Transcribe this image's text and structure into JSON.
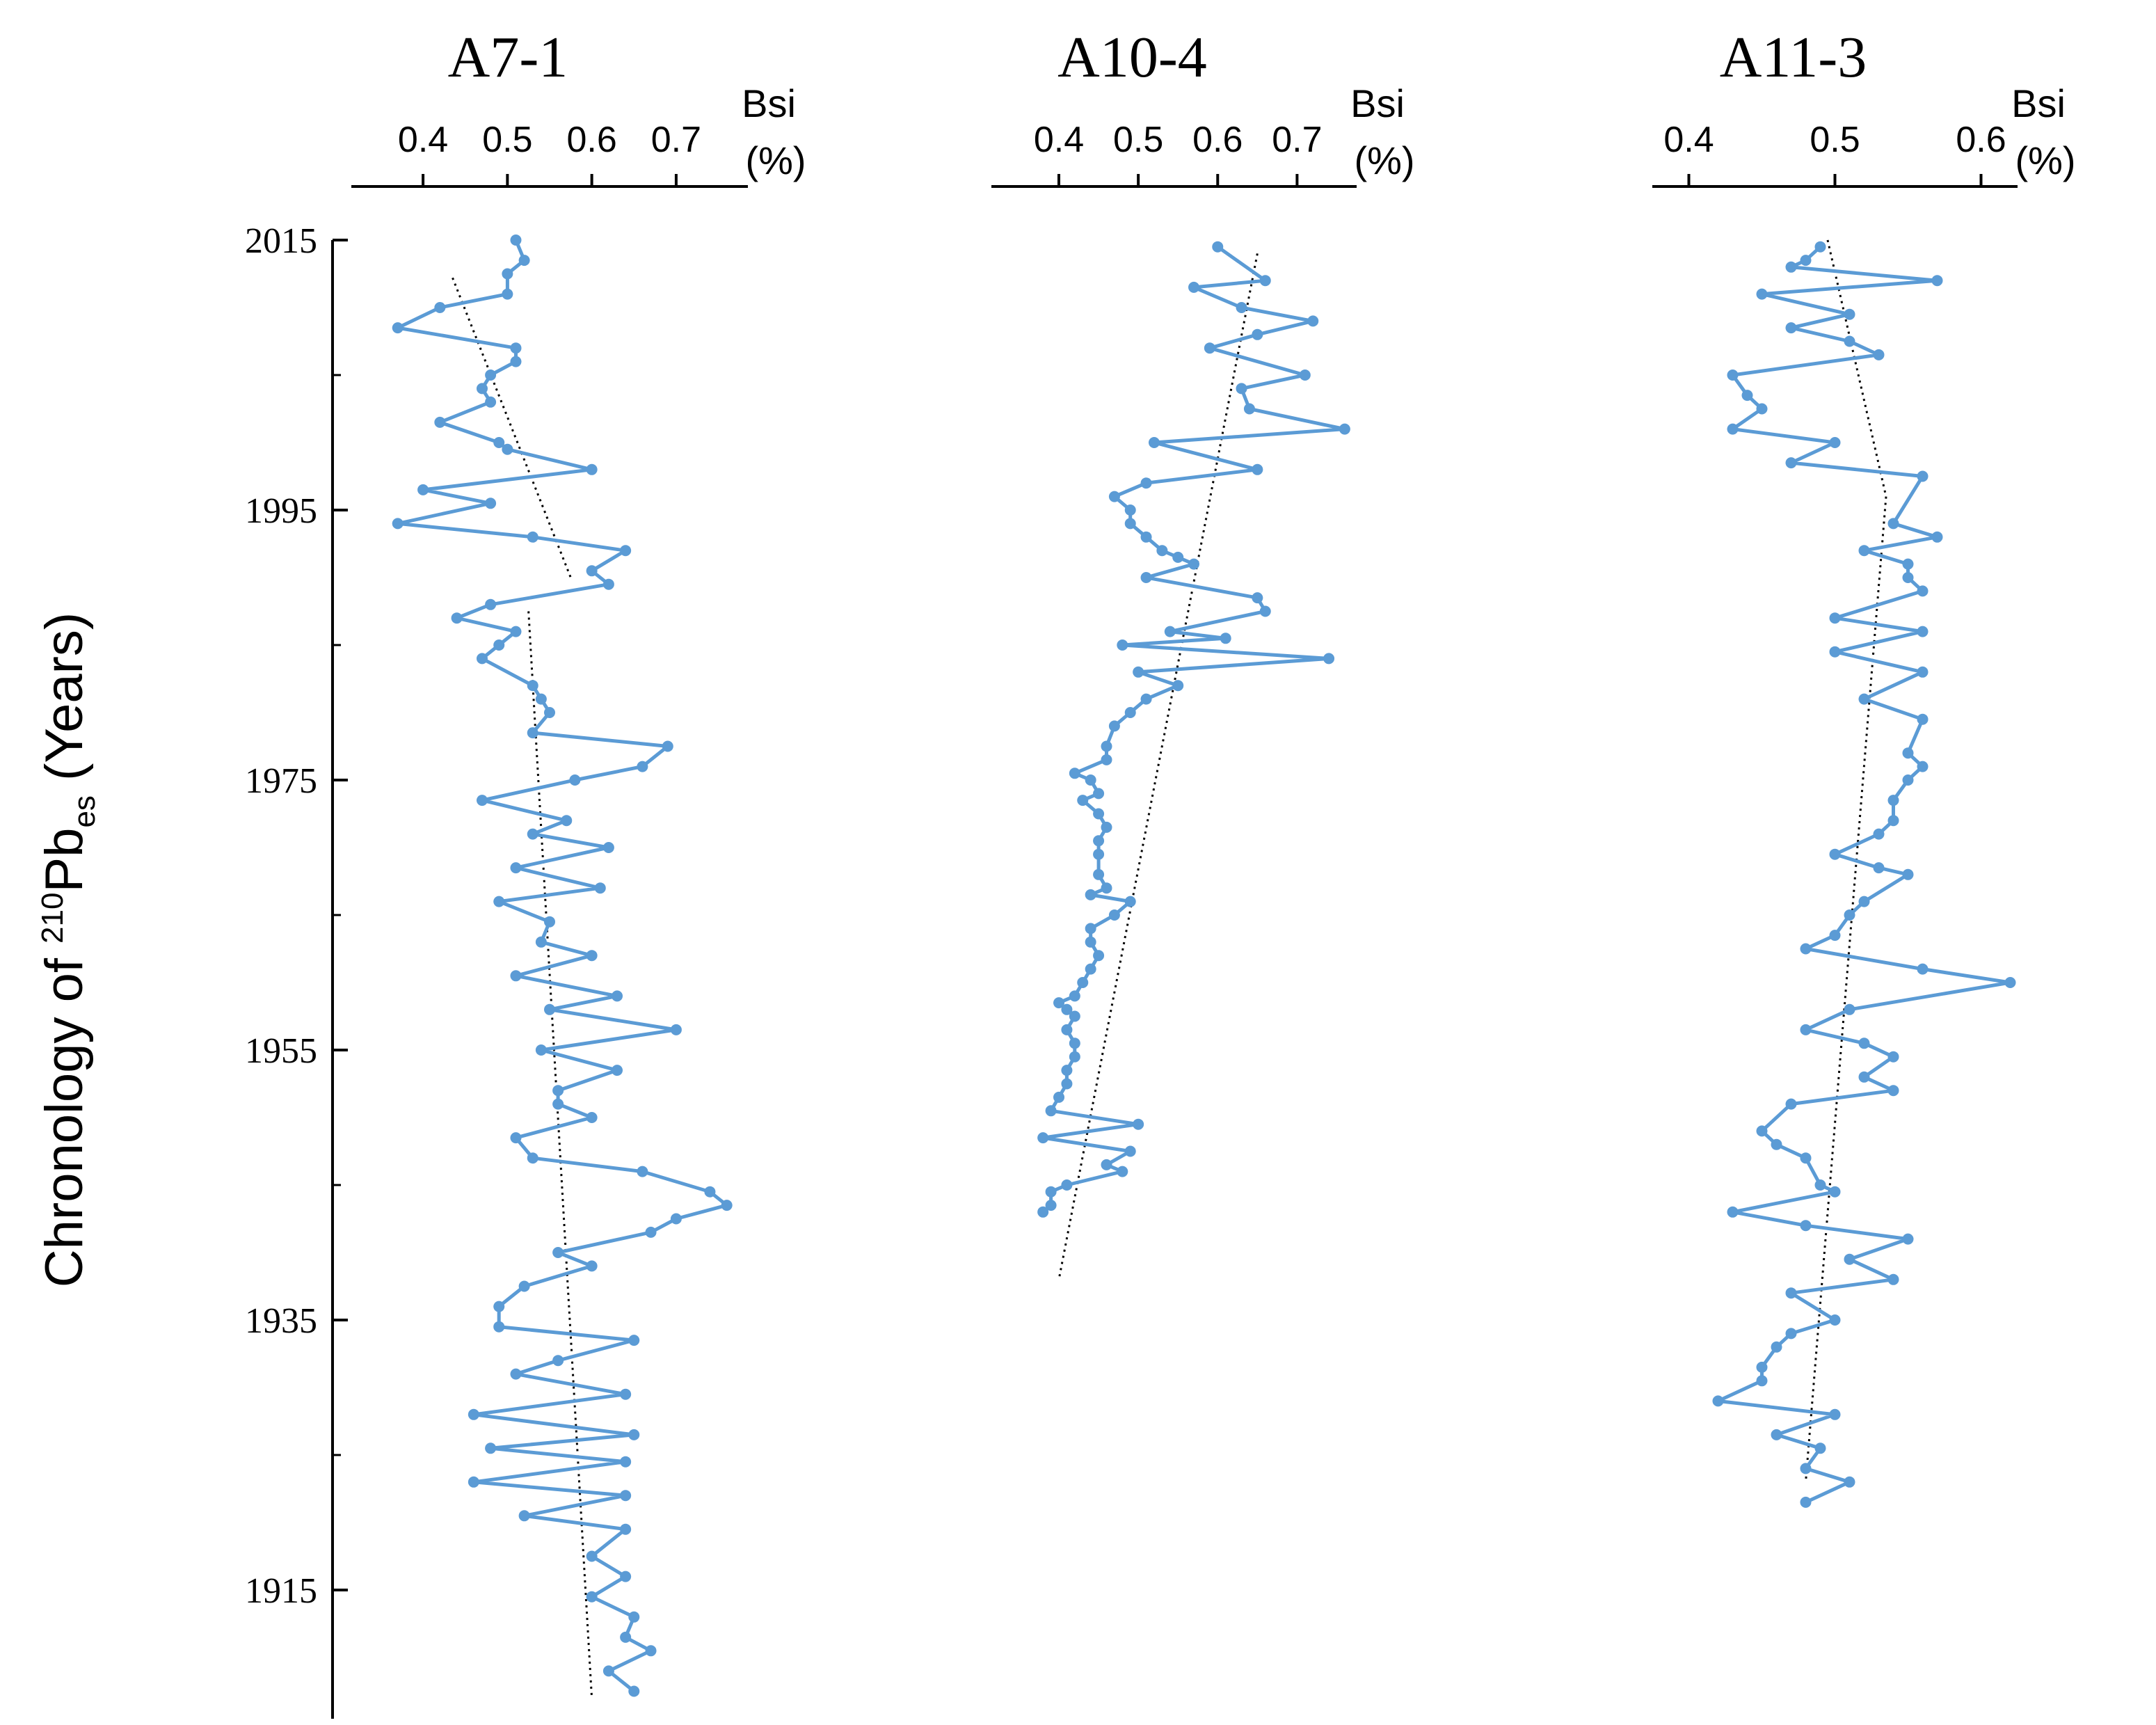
{
  "colors": {
    "series": "#5b9bd5",
    "axis": "#000000",
    "trend": "#000000"
  },
  "chart_data": {
    "type": "line",
    "orientation": "vertical-profile",
    "ylabel_parts": {
      "prefix": "Chronology of ",
      "sup": "210",
      "main": "Pb",
      "sub": "es",
      "suffix": " (Years)"
    },
    "y_ticks": [
      "2015",
      "1995",
      "1975",
      "1955",
      "1935",
      "1915"
    ],
    "y_tick_values": [
      2015,
      1995,
      1975,
      1955,
      1935,
      1915
    ],
    "y_minor_ticks": [
      2005,
      1985,
      1965,
      1945,
      1925
    ],
    "ylim": [
      1905,
      2016
    ],
    "panels": [
      {
        "title": "A7-1",
        "x_name": "Bsi",
        "x_unit": "(%)",
        "x_tick_labels": [
          "0.4",
          "0.5",
          "0.6",
          "0.7"
        ],
        "x_tick_values": [
          0.4,
          0.5,
          0.6,
          0.7
        ],
        "xlim": [
          0.315,
          0.785
        ],
        "points": [
          [
            0.51,
            2015
          ],
          [
            0.52,
            2013.5
          ],
          [
            0.5,
            2012.5
          ],
          [
            0.5,
            2011
          ],
          [
            0.42,
            2010
          ],
          [
            0.37,
            2008.5
          ],
          [
            0.51,
            2007
          ],
          [
            0.51,
            2006
          ],
          [
            0.48,
            2005
          ],
          [
            0.47,
            2004
          ],
          [
            0.48,
            2003
          ],
          [
            0.42,
            2001.5
          ],
          [
            0.49,
            2000
          ],
          [
            0.5,
            1999.5
          ],
          [
            0.6,
            1998
          ],
          [
            0.4,
            1996.5
          ],
          [
            0.48,
            1995.5
          ],
          [
            0.37,
            1994
          ],
          [
            0.53,
            1993
          ],
          [
            0.64,
            1992
          ],
          [
            0.6,
            1990.5
          ],
          [
            0.62,
            1989.5
          ],
          [
            0.48,
            1988
          ],
          [
            0.44,
            1987
          ],
          [
            0.51,
            1986
          ],
          [
            0.49,
            1985
          ],
          [
            0.47,
            1984
          ],
          [
            0.53,
            1982
          ],
          [
            0.54,
            1981
          ],
          [
            0.55,
            1980
          ],
          [
            0.53,
            1978.5
          ],
          [
            0.69,
            1977.5
          ],
          [
            0.66,
            1976
          ],
          [
            0.58,
            1975
          ],
          [
            0.47,
            1973.5
          ],
          [
            0.57,
            1972
          ],
          [
            0.53,
            1971
          ],
          [
            0.62,
            1970
          ],
          [
            0.51,
            1968.5
          ],
          [
            0.61,
            1967
          ],
          [
            0.49,
            1966
          ],
          [
            0.55,
            1964.5
          ],
          [
            0.54,
            1963
          ],
          [
            0.6,
            1962
          ],
          [
            0.51,
            1960.5
          ],
          [
            0.63,
            1959
          ],
          [
            0.55,
            1958
          ],
          [
            0.7,
            1956.5
          ],
          [
            0.54,
            1955
          ],
          [
            0.63,
            1953.5
          ],
          [
            0.56,
            1952
          ],
          [
            0.56,
            1951
          ],
          [
            0.6,
            1950
          ],
          [
            0.51,
            1948.5
          ],
          [
            0.53,
            1947
          ],
          [
            0.66,
            1946
          ],
          [
            0.74,
            1944.5
          ],
          [
            0.76,
            1943.5
          ],
          [
            0.7,
            1942.5
          ],
          [
            0.67,
            1941.5
          ],
          [
            0.56,
            1940
          ],
          [
            0.6,
            1939
          ],
          [
            0.52,
            1937.5
          ],
          [
            0.49,
            1936
          ],
          [
            0.49,
            1934.5
          ],
          [
            0.65,
            1933.5
          ],
          [
            0.56,
            1932
          ],
          [
            0.51,
            1931
          ],
          [
            0.64,
            1929.5
          ],
          [
            0.46,
            1928
          ],
          [
            0.65,
            1926.5
          ],
          [
            0.48,
            1925.5
          ],
          [
            0.64,
            1924.5
          ],
          [
            0.46,
            1923
          ],
          [
            0.64,
            1922
          ],
          [
            0.52,
            1920.5
          ],
          [
            0.64,
            1919.5
          ],
          [
            0.6,
            1917.5
          ],
          [
            0.64,
            1916
          ],
          [
            0.6,
            1914.5
          ],
          [
            0.65,
            1913
          ],
          [
            0.64,
            1911.5
          ],
          [
            0.67,
            1910.5
          ],
          [
            0.62,
            1909
          ],
          [
            0.65,
            1907.5
          ]
        ],
        "trends": [
          {
            "from": [
              0.435,
              2012.2
            ],
            "to": [
              0.575,
              1990
            ]
          },
          {
            "from": [
              0.525,
              1987.5
            ],
            "to": [
              0.6,
              1907
            ]
          }
        ]
      },
      {
        "title": "A10-4",
        "x_name": "Bsi",
        "x_unit": "(%)",
        "x_tick_labels": [
          "0.4",
          "0.5",
          "0.6",
          "0.7"
        ],
        "x_tick_values": [
          0.4,
          0.5,
          0.6,
          0.7
        ],
        "xlim": [
          0.315,
          0.775
        ],
        "points": [
          [
            0.6,
            2014.5
          ],
          [
            0.66,
            2012
          ],
          [
            0.57,
            2011.5
          ],
          [
            0.63,
            2010
          ],
          [
            0.72,
            2009
          ],
          [
            0.65,
            2008
          ],
          [
            0.59,
            2007
          ],
          [
            0.71,
            2005
          ],
          [
            0.63,
            2004
          ],
          [
            0.64,
            2002.5
          ],
          [
            0.76,
            2001
          ],
          [
            0.52,
            2000
          ],
          [
            0.65,
            1998
          ],
          [
            0.51,
            1997
          ],
          [
            0.47,
            1996
          ],
          [
            0.49,
            1995
          ],
          [
            0.49,
            1994
          ],
          [
            0.51,
            1993
          ],
          [
            0.53,
            1992
          ],
          [
            0.55,
            1991.5
          ],
          [
            0.57,
            1991
          ],
          [
            0.51,
            1990
          ],
          [
            0.65,
            1988.5
          ],
          [
            0.66,
            1987.5
          ],
          [
            0.54,
            1986
          ],
          [
            0.61,
            1985.5
          ],
          [
            0.48,
            1985
          ],
          [
            0.74,
            1984
          ],
          [
            0.5,
            1983
          ],
          [
            0.55,
            1982
          ],
          [
            0.51,
            1981
          ],
          [
            0.49,
            1980
          ],
          [
            0.47,
            1979
          ],
          [
            0.46,
            1977.5
          ],
          [
            0.46,
            1976.5
          ],
          [
            0.42,
            1975.5
          ],
          [
            0.44,
            1975
          ],
          [
            0.45,
            1974
          ],
          [
            0.43,
            1973.5
          ],
          [
            0.45,
            1972.5
          ],
          [
            0.46,
            1971.5
          ],
          [
            0.45,
            1970.5
          ],
          [
            0.45,
            1969.5
          ],
          [
            0.45,
            1968
          ],
          [
            0.46,
            1967
          ],
          [
            0.44,
            1966.5
          ],
          [
            0.49,
            1966
          ],
          [
            0.47,
            1965
          ],
          [
            0.44,
            1964
          ],
          [
            0.44,
            1963
          ],
          [
            0.45,
            1962
          ],
          [
            0.44,
            1961
          ],
          [
            0.43,
            1960
          ],
          [
            0.42,
            1959
          ],
          [
            0.4,
            1958.5
          ],
          [
            0.41,
            1958
          ],
          [
            0.42,
            1957.5
          ],
          [
            0.41,
            1956.5
          ],
          [
            0.42,
            1955.5
          ],
          [
            0.42,
            1954.5
          ],
          [
            0.41,
            1953.5
          ],
          [
            0.41,
            1952.5
          ],
          [
            0.4,
            1951.5
          ],
          [
            0.39,
            1950.5
          ],
          [
            0.5,
            1949.5
          ],
          [
            0.38,
            1948.5
          ],
          [
            0.49,
            1947.5
          ],
          [
            0.46,
            1946.5
          ],
          [
            0.48,
            1946
          ],
          [
            0.41,
            1945
          ],
          [
            0.39,
            1944.5
          ],
          [
            0.39,
            1943.5
          ],
          [
            0.38,
            1943
          ]
        ],
        "trends": [
          {
            "from": [
              0.65,
              2014
            ],
            "to": [
              0.4,
              1938
            ]
          }
        ]
      },
      {
        "title": "A11-3",
        "x_name": "Bsi",
        "x_unit": "(%)",
        "x_tick_labels": [
          "0.4",
          "0.5",
          "0.6"
        ],
        "x_tick_values": [
          0.4,
          0.5,
          0.6
        ],
        "xlim": [
          0.375,
          0.625
        ],
        "points": [
          [
            0.49,
            2014.5
          ],
          [
            0.48,
            2013.5
          ],
          [
            0.47,
            2013
          ],
          [
            0.57,
            2012
          ],
          [
            0.45,
            2011
          ],
          [
            0.51,
            2009.5
          ],
          [
            0.47,
            2008.5
          ],
          [
            0.51,
            2007.5
          ],
          [
            0.53,
            2006.5
          ],
          [
            0.43,
            2005
          ],
          [
            0.44,
            2003.5
          ],
          [
            0.45,
            2002.5
          ],
          [
            0.43,
            2001
          ],
          [
            0.5,
            2000
          ],
          [
            0.47,
            1998.5
          ],
          [
            0.56,
            1997.5
          ],
          [
            0.54,
            1994
          ],
          [
            0.57,
            1993
          ],
          [
            0.52,
            1992
          ],
          [
            0.55,
            1991
          ],
          [
            0.55,
            1990
          ],
          [
            0.56,
            1989
          ],
          [
            0.5,
            1987
          ],
          [
            0.56,
            1986
          ],
          [
            0.5,
            1984.5
          ],
          [
            0.56,
            1983
          ],
          [
            0.52,
            1981
          ],
          [
            0.56,
            1979.5
          ],
          [
            0.55,
            1977
          ],
          [
            0.56,
            1976
          ],
          [
            0.55,
            1975
          ],
          [
            0.54,
            1973.5
          ],
          [
            0.54,
            1972
          ],
          [
            0.53,
            1971
          ],
          [
            0.5,
            1969.5
          ],
          [
            0.53,
            1968.5
          ],
          [
            0.55,
            1968
          ],
          [
            0.52,
            1966
          ],
          [
            0.51,
            1965
          ],
          [
            0.5,
            1963.5
          ],
          [
            0.48,
            1962.5
          ],
          [
            0.56,
            1961
          ],
          [
            0.62,
            1960
          ],
          [
            0.51,
            1958
          ],
          [
            0.48,
            1956.5
          ],
          [
            0.52,
            1955.5
          ],
          [
            0.54,
            1954.5
          ],
          [
            0.52,
            1953
          ],
          [
            0.54,
            1952
          ],
          [
            0.47,
            1951
          ],
          [
            0.45,
            1949
          ],
          [
            0.46,
            1948
          ],
          [
            0.48,
            1947
          ],
          [
            0.49,
            1945
          ],
          [
            0.5,
            1944.5
          ],
          [
            0.43,
            1943
          ],
          [
            0.48,
            1942
          ],
          [
            0.55,
            1941
          ],
          [
            0.51,
            1939.5
          ],
          [
            0.54,
            1938
          ],
          [
            0.47,
            1937
          ],
          [
            0.5,
            1935
          ],
          [
            0.47,
            1934
          ],
          [
            0.46,
            1933
          ],
          [
            0.45,
            1931.5
          ],
          [
            0.45,
            1930.5
          ],
          [
            0.42,
            1929
          ],
          [
            0.5,
            1928
          ],
          [
            0.46,
            1926.5
          ],
          [
            0.49,
            1925.5
          ],
          [
            0.48,
            1924
          ],
          [
            0.51,
            1923
          ],
          [
            0.48,
            1921.5
          ]
        ],
        "trends": [
          {
            "from": [
              0.495,
              2015
            ],
            "to": [
              0.535,
              1996
            ]
          },
          {
            "from": [
              0.535,
              1996
            ],
            "to": [
              0.48,
              1923
            ]
          }
        ]
      }
    ]
  }
}
